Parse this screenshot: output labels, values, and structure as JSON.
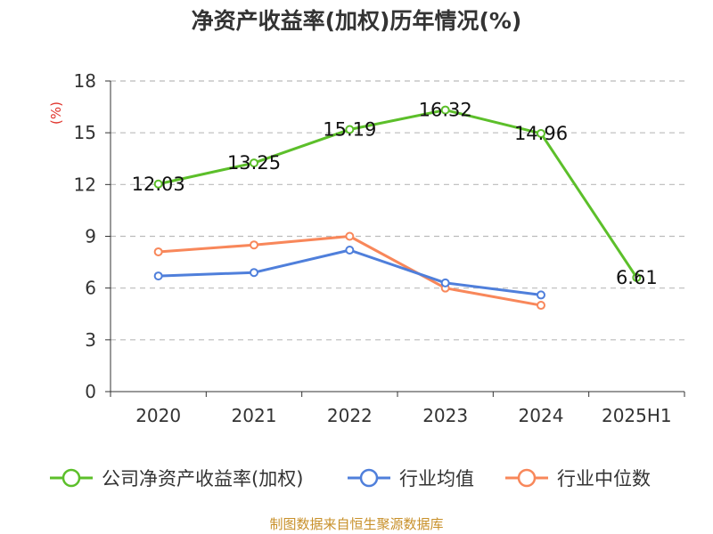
{
  "title": "净资产收益率(加权)历年情况(%)",
  "source_text": "制图数据来自恒生聚源数据库",
  "colors": {
    "company": "#5cbf2a",
    "industry_avg": "#4f7fdb",
    "industry_median": "#f8875a",
    "axis_text": "#333333",
    "unit_text": "#e0322a",
    "grid": "#bbbbbb",
    "source": "#c8902a"
  },
  "chart_data": {
    "type": "line",
    "title": "净资产收益率(加权)历年情况(%)",
    "ylabel": "(%)",
    "xlabel": "",
    "categories": [
      "2020",
      "2021",
      "2022",
      "2023",
      "2024",
      "2025H1"
    ],
    "ylim": [
      0,
      18
    ],
    "yticks": [
      0,
      3,
      6,
      9,
      12,
      15,
      18
    ],
    "grid": true,
    "legend_position": "bottom",
    "series": [
      {
        "name": "公司净资产收益率(加权)",
        "values": [
          12.03,
          13.25,
          15.19,
          16.32,
          14.96,
          6.61
        ],
        "labels": [
          "12.03",
          "13.25",
          "15.19",
          "16.32",
          "14.96",
          "6.61"
        ]
      },
      {
        "name": "行业均值",
        "values": [
          6.7,
          6.9,
          8.2,
          6.3,
          5.6,
          null
        ]
      },
      {
        "name": "行业中位数",
        "values": [
          8.1,
          8.5,
          9.0,
          6.0,
          5.0,
          null
        ]
      }
    ]
  }
}
